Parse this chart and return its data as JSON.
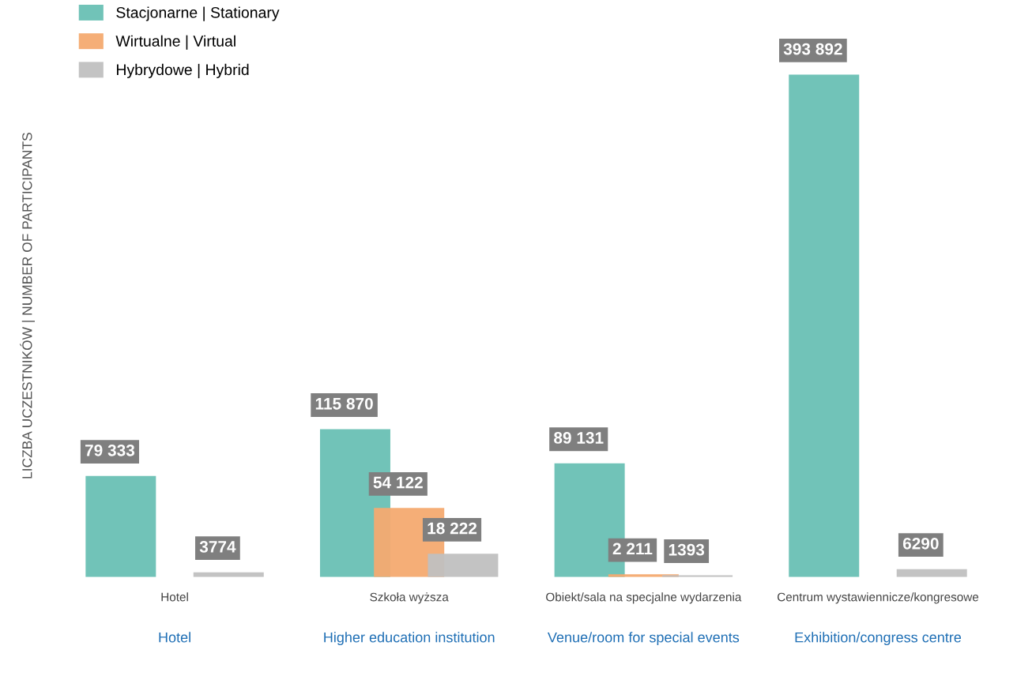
{
  "chart_data": {
    "type": "bar",
    "ylabel": "LICZBA UCZESTNIKÓW | NUMBER OF PARTICIPANTS",
    "categories": [
      "Hotel",
      "Szkoła wyższa",
      "Obiekt/sala na specjalne wydarzenia",
      "Centrum wystawiennicze/kongresowe"
    ],
    "annotations": [
      "Hotel",
      "Higher education institution",
      "Venue/room for special events",
      "Exhibition/congress centre"
    ],
    "series": [
      {
        "name": "Stacjonarne | Stationary",
        "color": "#69c0b4",
        "values": [
          79333,
          115870,
          89131,
          393892
        ],
        "value_labels": [
          "79 333",
          "115 870",
          "89 131",
          "393 892"
        ]
      },
      {
        "name": "Wirtualne | Virtual",
        "color": "#f4aa70",
        "values": [
          0,
          54122,
          2211,
          0
        ],
        "value_labels": [
          null,
          "54 122",
          "2 211",
          null
        ]
      },
      {
        "name": "Hybrydowe | Hybrid",
        "color": "#c0c0c0",
        "values": [
          3774,
          18222,
          1393,
          6290
        ],
        "value_labels": [
          "3774",
          "18 222",
          "1393",
          "6290"
        ]
      }
    ],
    "legend": "top left",
    "grid": false,
    "tick_labels": "x"
  }
}
